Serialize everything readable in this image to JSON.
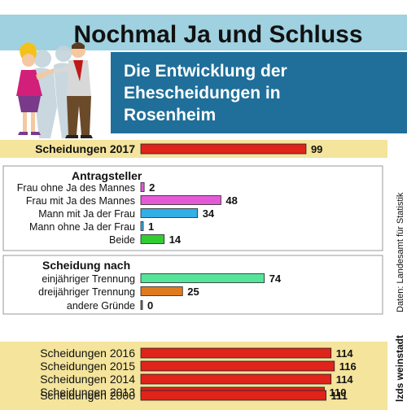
{
  "title": "Nochmal Ja und Schluss",
  "subtitle_lines": [
    "Die Entwicklung der",
    "Ehescheidungen in",
    "Rosenheim"
  ],
  "source": "Daten: Landesamt für Statistik",
  "credit": "lzds weinstadt",
  "colors": {
    "title_band": "#9fd1e0",
    "subtitle_band": "#1f6f9a",
    "highlight_band": "#f4e49c",
    "red": "#e0231b",
    "pink": "#e35ad6",
    "blue": "#33aee6",
    "green": "#33cc33",
    "mint": "#56e39a",
    "orange": "#e07a1f",
    "dark": "#7a7a7a"
  },
  "chart_data": {
    "type": "bar",
    "orientation": "horizontal",
    "groups": [
      {
        "heading": "",
        "categories": [
          "Scheidungen 2017"
        ],
        "values": [
          99
        ],
        "colors": [
          "red"
        ]
      },
      {
        "heading": "Antragsteller",
        "categories": [
          "Frau ohne Ja des Mannes",
          "Frau mit Ja des Mannes",
          "Mann mit Ja der Frau",
          "Mann ohne Ja der Frau",
          "Beide"
        ],
        "values": [
          2,
          48,
          34,
          1,
          14
        ],
        "colors": [
          "pink",
          "pink",
          "blue",
          "blue",
          "green"
        ]
      },
      {
        "heading": "Scheidung nach",
        "categories": [
          "einjähriger Trennung",
          "dreijähriger Trennung",
          "andere Gründe"
        ],
        "values": [
          74,
          25,
          0
        ],
        "colors": [
          "mint",
          "orange",
          "dark"
        ]
      },
      {
        "heading": "",
        "categories": [
          "Scheidungen 2016",
          "Scheidungen 2015",
          "Scheidungen 2014",
          "Scheidungen 2013",
          "Scheidungen 2000"
        ],
        "values": [
          114,
          116,
          114,
          110,
          111
        ],
        "colors": [
          "red",
          "red",
          "red",
          "red",
          "red"
        ]
      }
    ]
  }
}
